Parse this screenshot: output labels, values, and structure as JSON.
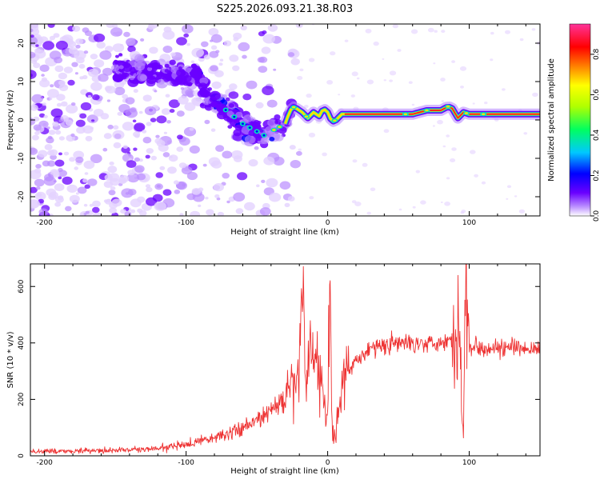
{
  "title": "S225.2026.093.21.38.R03",
  "colors": {
    "snr_line": "#ee3333",
    "spectral_ridge_core": "#ff2a1a",
    "spectral_ridge_mid": "#ffe000",
    "spectral_ridge_outer": "#00e0c0",
    "spectral_blob": "#6a00ff",
    "spectral_faint": "#b98cff",
    "spectral_very_faint": "#e4d2ff"
  },
  "chart_data": [
    {
      "type": "heatmap",
      "id": "spectrogram",
      "title": "S225.2026.093.21.38.R03",
      "xlabel": "Height of straight line (km)",
      "ylabel": "Frequency (Hz)",
      "xlim": [
        -210,
        150
      ],
      "ylim": [
        -25,
        25
      ],
      "x_ticks": [
        -200,
        -100,
        0,
        100
      ],
      "x_tick_labels": [
        "-200",
        "-100",
        "0",
        "100"
      ],
      "y_ticks": [
        -20,
        -10,
        0,
        10,
        20
      ],
      "y_tick_labels": [
        "-20",
        "-10",
        "0",
        "10",
        "20"
      ],
      "ridge": {
        "x": [
          -90,
          -80,
          -70,
          -60,
          -55,
          -50,
          -45,
          -40,
          -35,
          -30,
          -28,
          -25,
          -22,
          -18,
          -14,
          -10,
          -6,
          -3,
          0,
          3,
          6,
          10,
          20,
          40,
          60,
          70,
          75,
          80,
          85,
          88,
          92,
          96,
          100,
          110,
          130,
          150
        ],
        "y": [
          8,
          5,
          2,
          -1,
          -2,
          -3,
          -4,
          -3,
          -2,
          -1,
          1,
          3.5,
          3,
          2,
          0.5,
          2,
          1,
          3,
          2,
          -0.5,
          0,
          1.5,
          1.5,
          1.5,
          1.5,
          2.5,
          2.5,
          2.5,
          3.5,
          3,
          0.5,
          2,
          1.5,
          1.5,
          1.5,
          1.5
        ]
      },
      "colorbar": {
        "label": "Normalized spectral amplitude",
        "range": [
          0.0,
          0.95
        ],
        "ticks": [
          0.0,
          0.2,
          0.4,
          0.6,
          0.8
        ],
        "tick_labels": [
          "0.0",
          "0.2",
          "0.4",
          "0.6",
          "0.8"
        ],
        "colormap": [
          "#ffffff",
          "#6a00ff",
          "#0000ff",
          "#00c8ff",
          "#00ff60",
          "#b0ff00",
          "#ffff00",
          "#ff8000",
          "#ff0000",
          "#ff3399"
        ]
      }
    },
    {
      "type": "line",
      "id": "snr",
      "xlabel": "Height of straight line (km)",
      "ylabel": "SNR (10 * v/v)",
      "xlim": [
        -210,
        150
      ],
      "ylim": [
        0,
        680
      ],
      "x_ticks": [
        -200,
        -100,
        0,
        100
      ],
      "x_tick_labels": [
        "-200",
        "-100",
        "0",
        "100"
      ],
      "y_ticks": [
        0,
        200,
        400,
        600
      ],
      "y_tick_labels": [
        "0",
        "200",
        "400",
        "600"
      ],
      "series": [
        {
          "name": "SNR",
          "x": [
            -210,
            -180,
            -150,
            -120,
            -100,
            -80,
            -70,
            -60,
            -50,
            -40,
            -35,
            -30,
            -25,
            -22,
            -20,
            -18,
            -17,
            -16,
            -14,
            -10,
            -6,
            -3,
            0,
            1,
            2,
            3,
            5,
            8,
            10,
            15,
            20,
            30,
            40,
            60,
            80,
            90,
            93,
            95,
            96,
            97,
            98,
            100,
            110,
            130,
            150
          ],
          "y": [
            15,
            18,
            20,
            25,
            40,
            65,
            80,
            100,
            125,
            160,
            180,
            200,
            240,
            280,
            300,
            600,
            640,
            260,
            330,
            380,
            300,
            220,
            120,
            560,
            590,
            100,
            60,
            180,
            230,
            300,
            340,
            380,
            395,
            400,
            405,
            410,
            480,
            120,
            80,
            560,
            650,
            390,
            385,
            380,
            375
          ]
        }
      ]
    }
  ]
}
